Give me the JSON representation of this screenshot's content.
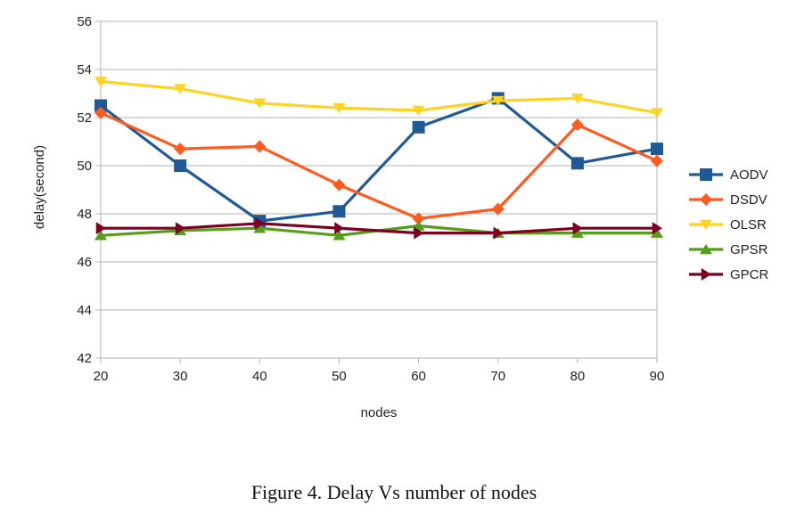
{
  "caption": "Figure 4.    Delay Vs number of nodes",
  "chart_data": {
    "type": "line",
    "title": "",
    "xlabel": "nodes",
    "ylabel": "delay(second)",
    "x": [
      20,
      30,
      40,
      50,
      60,
      70,
      80,
      90
    ],
    "ylim": [
      42,
      56
    ],
    "yticks": [
      42,
      44,
      46,
      48,
      50,
      52,
      54,
      56
    ],
    "grid": "horizontal",
    "legend": "right",
    "series": [
      {
        "name": "AODV",
        "color": "#1f5a96",
        "marker": "square",
        "values": [
          52.5,
          50.0,
          47.7,
          48.1,
          51.6,
          52.8,
          50.1,
          50.7
        ]
      },
      {
        "name": "DSDV",
        "color": "#ff5a1f",
        "marker": "diamond",
        "values": [
          52.2,
          50.7,
          50.8,
          49.2,
          47.8,
          48.2,
          51.7,
          50.2
        ]
      },
      {
        "name": "OLSR",
        "color": "#ffd320",
        "marker": "triangle-down",
        "values": [
          53.5,
          53.2,
          52.6,
          52.4,
          52.3,
          52.7,
          52.8,
          52.2
        ]
      },
      {
        "name": "GPSR",
        "color": "#579d1c",
        "marker": "triangle-up",
        "values": [
          47.1,
          47.3,
          47.4,
          47.1,
          47.5,
          47.2,
          47.2,
          47.2
        ]
      },
      {
        "name": "GPCR",
        "color": "#7e0021",
        "marker": "triangle-right",
        "values": [
          47.4,
          47.4,
          47.6,
          47.4,
          47.2,
          47.2,
          47.4,
          47.4
        ]
      }
    ]
  }
}
